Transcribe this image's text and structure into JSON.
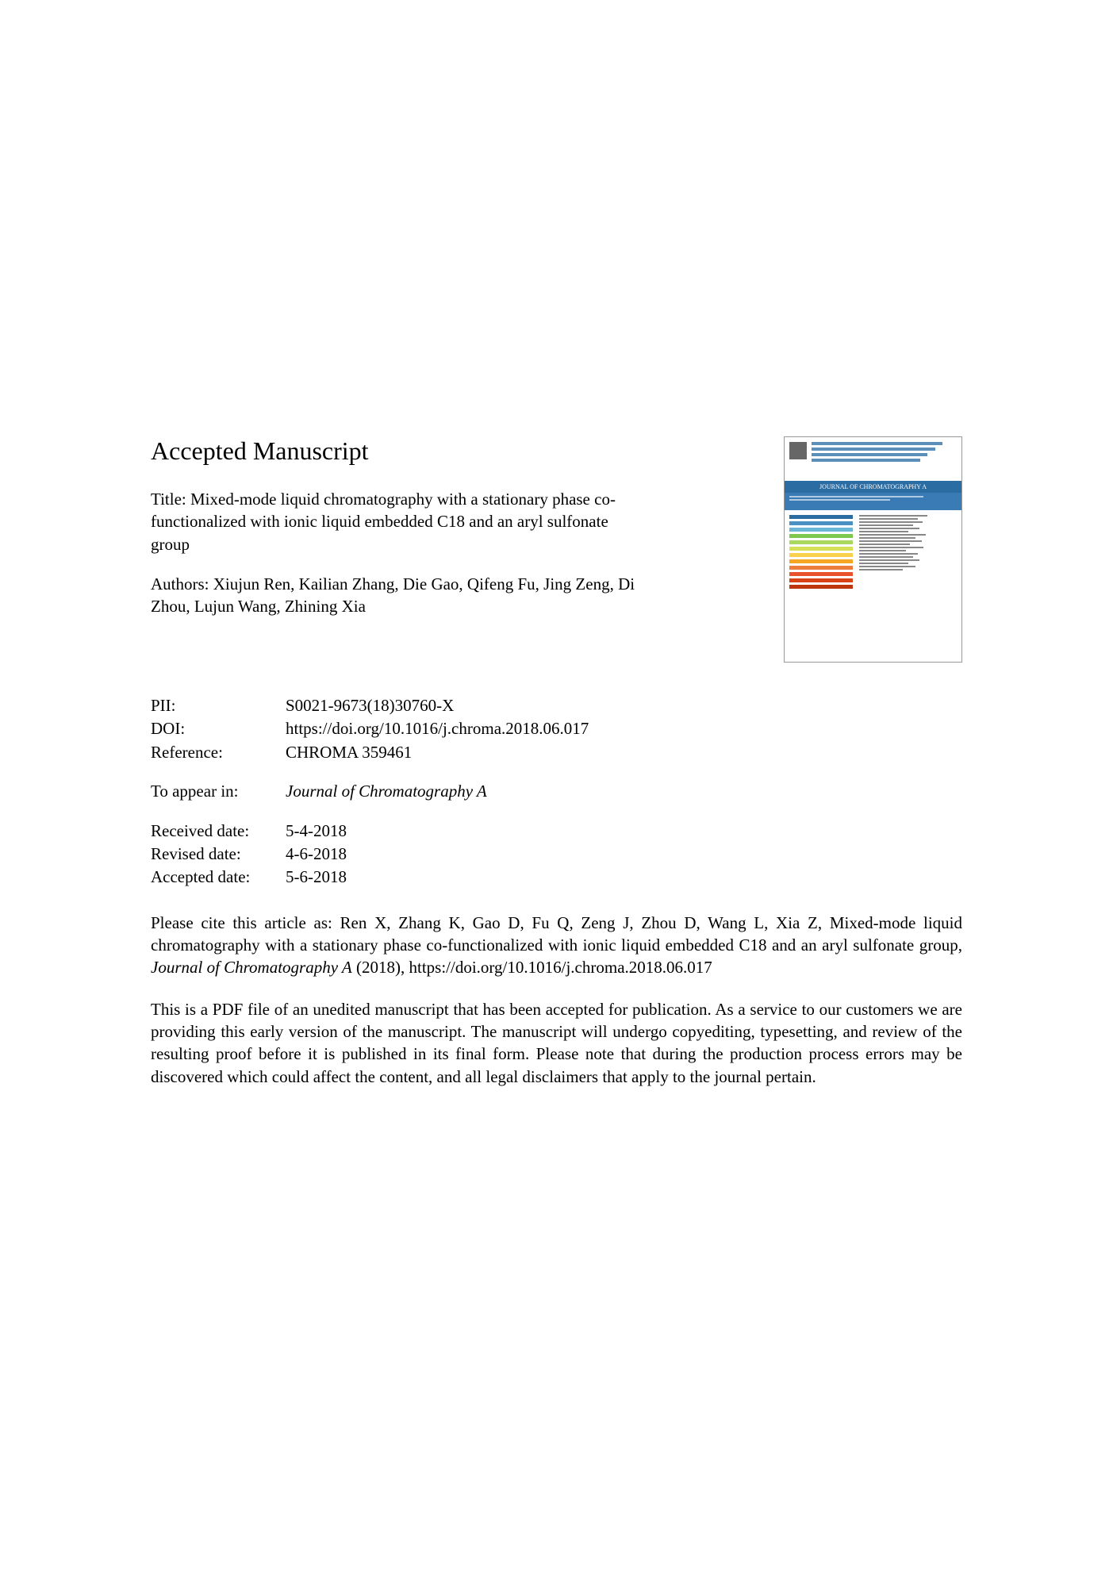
{
  "heading": "Accepted Manuscript",
  "title_prefix": "Title: ",
  "title": "Mixed-mode liquid chromatography with a stationary phase co-functionalized with ionic liquid embedded C18 and an aryl sulfonate group",
  "authors_prefix": "Authors: ",
  "authors": "Xiujun Ren, Kailian Zhang, Die Gao, Qifeng Fu, Jing Zeng, Di Zhou, Lujun Wang, Zhining Xia",
  "meta": {
    "pii_label": "PII:",
    "pii_value": "S0021-9673(18)30760-X",
    "doi_label": "DOI:",
    "doi_value": "https://doi.org/10.1016/j.chroma.2018.06.017",
    "reference_label": "Reference:",
    "reference_value": "CHROMA 359461",
    "appear_label": "To appear in:",
    "appear_value": "Journal of Chromatography A",
    "received_label": "Received date:",
    "received_value": "5-4-2018",
    "revised_label": "Revised date:",
    "revised_value": "4-6-2018",
    "accepted_label": "Accepted date:",
    "accepted_value": "5-6-2018"
  },
  "citation_prefix": "Please cite this article as: Ren X, Zhang K, Gao D, Fu Q, Zeng J, Zhou D, Wang L, Xia Z, Mixed-mode liquid chromatography with a stationary phase co-functionalized with ionic liquid embedded C18 and an aryl sulfonate group, ",
  "citation_journal": "Journal of Chromatography A",
  "citation_suffix": " (2018), https://doi.org/10.1016/j.chroma.2018.06.017",
  "disclaimer": "This is a PDF file of an unedited manuscript that has been accepted for publication. As a service to our customers we are providing this early version of the manuscript. The manuscript will undergo copyediting, typesetting, and review of the resulting proof before it is published in its final form. Please note that during the production process errors may be discovered which could affect the content, and all legal disclaimers that apply to the journal pertain.",
  "thumb": {
    "banner_text": "JOURNAL OF CHROMATOGRAPHY A",
    "color_bars": [
      "#2b6ca3",
      "#4a90c2",
      "#6bb5d8",
      "#7ec850",
      "#a8d85e",
      "#d4e157",
      "#f9d14c",
      "#f5a623",
      "#ed7d3a",
      "#e8532b",
      "#d84315",
      "#bf360c"
    ]
  }
}
